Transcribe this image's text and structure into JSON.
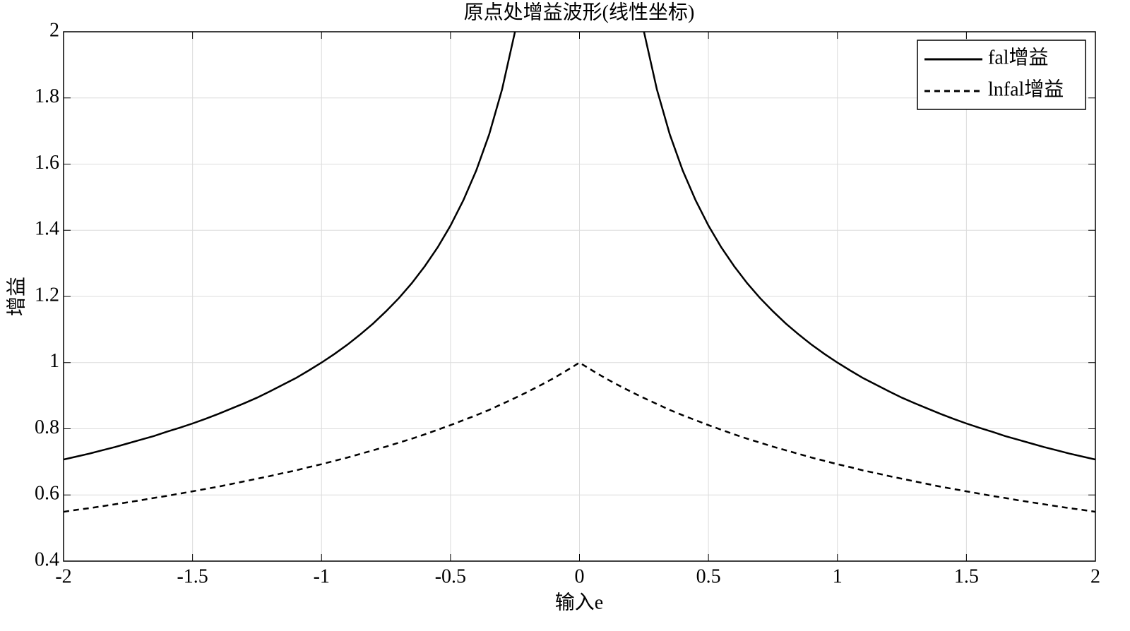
{
  "chart_data": {
    "type": "line",
    "title": "原点处增益波形(线性坐标)",
    "x_label": "输入e",
    "y_label": "增益",
    "x": [
      -2,
      -1.95,
      -1.9,
      -1.85,
      -1.8,
      -1.75,
      -1.7,
      -1.65,
      -1.6,
      -1.55,
      -1.5,
      -1.45,
      -1.4,
      -1.35,
      -1.3,
      -1.25,
      -1.2,
      -1.15,
      -1.1,
      -1.05,
      -1,
      -0.95,
      -0.9,
      -0.85,
      -0.8,
      -0.75,
      -0.7,
      -0.65,
      -0.6,
      -0.55,
      -0.5,
      -0.45,
      -0.4,
      -0.35,
      -0.3,
      -0.25,
      -0.2,
      -0.15,
      -0.1,
      -0.05,
      0,
      0.05,
      0.1,
      0.15,
      0.2,
      0.25,
      0.3,
      0.35,
      0.4,
      0.45,
      0.5,
      0.55,
      0.6,
      0.65,
      0.7,
      0.75,
      0.8,
      0.85,
      0.9,
      0.95,
      1,
      1.05,
      1.1,
      1.15,
      1.2,
      1.25,
      1.3,
      1.35,
      1.4,
      1.45,
      1.5,
      1.55,
      1.6,
      1.65,
      1.7,
      1.75,
      1.8,
      1.85,
      1.9,
      1.95,
      2
    ],
    "series": [
      {
        "name": "fal增益",
        "color": "#000000",
        "style": "solid",
        "values": [
          0.707,
          0.716,
          0.725,
          0.735,
          0.745,
          0.756,
          0.767,
          0.778,
          0.791,
          0.803,
          0.816,
          0.83,
          0.845,
          0.861,
          0.877,
          0.894,
          0.913,
          0.933,
          0.953,
          0.976,
          1,
          1.026,
          1.054,
          1.085,
          1.118,
          1.155,
          1.195,
          1.24,
          1.291,
          1.348,
          1.414,
          1.491,
          1.581,
          1.69,
          1.826,
          2,
          null,
          null,
          null,
          null,
          null,
          null,
          null,
          null,
          null,
          2,
          1.826,
          1.69,
          1.581,
          1.491,
          1.414,
          1.348,
          1.291,
          1.24,
          1.195,
          1.155,
          1.118,
          1.085,
          1.054,
          1.026,
          1,
          0.976,
          0.953,
          0.933,
          0.913,
          0.894,
          0.877,
          0.861,
          0.845,
          0.83,
          0.816,
          0.803,
          0.791,
          0.778,
          0.767,
          0.756,
          0.745,
          0.735,
          0.725,
          0.716,
          0.707
        ]
      },
      {
        "name": "lnfal增益",
        "color": "#000000",
        "style": "dashed",
        "values": [
          0.549,
          0.555,
          0.56,
          0.566,
          0.572,
          0.578,
          0.584,
          0.591,
          0.597,
          0.604,
          0.611,
          0.618,
          0.625,
          0.633,
          0.641,
          0.649,
          0.657,
          0.666,
          0.674,
          0.684,
          0.693,
          0.703,
          0.713,
          0.724,
          0.735,
          0.746,
          0.758,
          0.77,
          0.783,
          0.797,
          0.811,
          0.826,
          0.841,
          0.857,
          0.875,
          0.893,
          0.912,
          0.932,
          0.953,
          0.976,
          1,
          0.976,
          0.953,
          0.932,
          0.912,
          0.893,
          0.875,
          0.857,
          0.841,
          0.826,
          0.811,
          0.797,
          0.783,
          0.77,
          0.758,
          0.746,
          0.735,
          0.724,
          0.713,
          0.703,
          0.693,
          0.684,
          0.674,
          0.666,
          0.657,
          0.649,
          0.641,
          0.633,
          0.625,
          0.618,
          0.611,
          0.604,
          0.597,
          0.591,
          0.584,
          0.578,
          0.572,
          0.566,
          0.56,
          0.555,
          0.549
        ]
      }
    ],
    "xlim": [
      -2,
      2
    ],
    "xticks": [
      -2,
      -1.5,
      -1,
      -0.5,
      0,
      0.5,
      1,
      1.5,
      2
    ],
    "ylim": [
      0.4,
      2
    ],
    "yticks": [
      0.4,
      0.6,
      0.8,
      1,
      1.2,
      1.4,
      1.6,
      1.8,
      2
    ],
    "grid": true,
    "legend": "upper right"
  }
}
